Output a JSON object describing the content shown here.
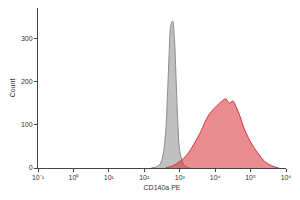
{
  "chart_data": {
    "type": "area",
    "log": "x",
    "x_label": "CD140a PE",
    "y_label": "Count",
    "xlim": [
      0.1,
      1000000
    ],
    "xticks": [
      {
        "value": 0.1,
        "label": "10⁻¹"
      },
      {
        "value": 1,
        "label": "10⁰"
      },
      {
        "value": 10,
        "label": "10¹"
      },
      {
        "value": 100,
        "label": "10²"
      },
      {
        "value": 1000,
        "label": "10³"
      },
      {
        "value": 10000,
        "label": "10⁴"
      },
      {
        "value": 100000,
        "label": "10⁵"
      },
      {
        "value": 1000000,
        "label": "10⁶"
      }
    ],
    "ylim": [
      0,
      370
    ],
    "yticks": [
      0,
      100,
      200,
      300
    ],
    "grid": false,
    "series": [
      {
        "color": "#8c8c8c",
        "x": [
          158,
          251,
          316,
          398,
          447,
          501,
          562,
          631,
          708,
          794,
          891,
          1000,
          1259,
          1585,
          1995
        ],
        "values": [
          0,
          5,
          20,
          80,
          160,
          260,
          330,
          340,
          300,
          200,
          100,
          40,
          10,
          2,
          0
        ]
      },
      {
        "color": "#d9303a",
        "x": [
          398,
          631,
          1000,
          1585,
          2512,
          3981,
          6310,
          10000,
          15850,
          20000,
          25120,
          31620,
          39810,
          50120,
          63100,
          100000,
          158500,
          251200,
          398100,
          630960
        ],
        "values": [
          0,
          5,
          15,
          30,
          55,
          85,
          120,
          140,
          155,
          160,
          150,
          155,
          140,
          120,
          95,
          60,
          35,
          15,
          5,
          0
        ]
      }
    ]
  }
}
